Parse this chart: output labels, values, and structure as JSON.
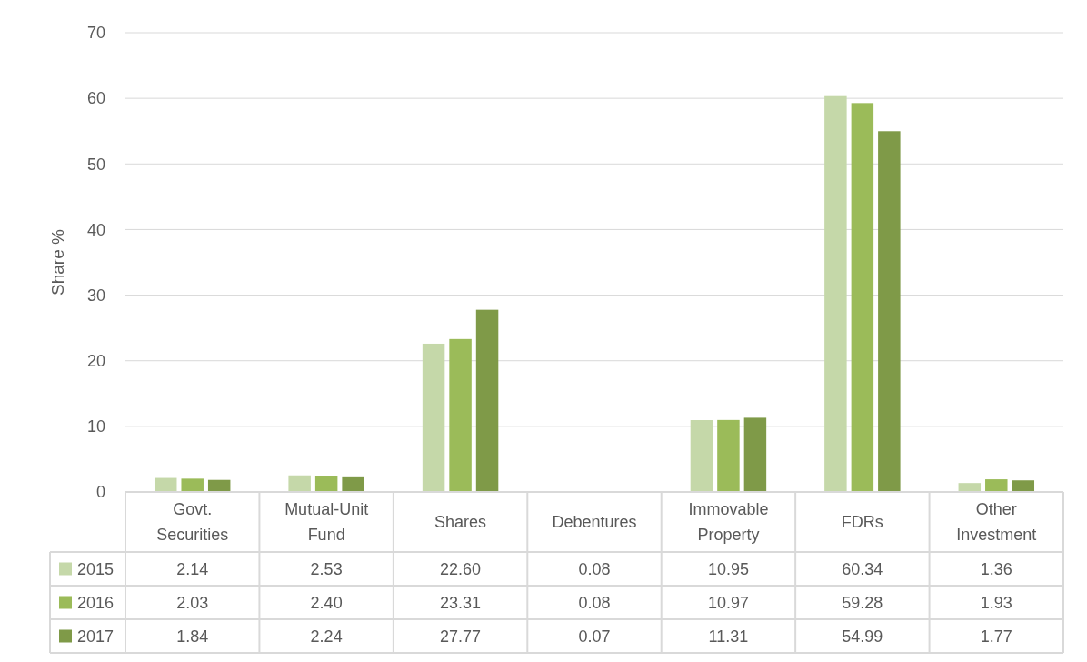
{
  "chart_data": {
    "type": "bar",
    "ylabel": "Share %",
    "categories": [
      "Govt. Securities",
      "Mutual-Unit Fund",
      "Shares",
      "Debentures",
      "Immovable Property",
      "FDRs",
      "Other Investment"
    ],
    "series": [
      {
        "name": "2015",
        "color": "#c5d8a9",
        "values": [
          2.14,
          2.53,
          22.6,
          0.08,
          10.95,
          60.34,
          1.36
        ],
        "value_labels": [
          "2.14",
          "2.53",
          "22.60",
          "0.08",
          "10.95",
          "60.34",
          "1.36"
        ]
      },
      {
        "name": "2016",
        "color": "#9bbb59",
        "values": [
          2.03,
          2.4,
          23.31,
          0.08,
          10.97,
          59.28,
          1.93
        ],
        "value_labels": [
          "2.03",
          "2.40",
          "23.31",
          "0.08",
          "10.97",
          "59.28",
          "1.93"
        ]
      },
      {
        "name": "2017",
        "color": "#7f9a48",
        "values": [
          1.84,
          2.24,
          27.77,
          0.07,
          11.31,
          54.99,
          1.77
        ],
        "value_labels": [
          "1.84",
          "2.24",
          "27.77",
          "0.07",
          "11.31",
          "54.99",
          "1.77"
        ]
      }
    ],
    "ylim": [
      0,
      70
    ],
    "yticks": [
      0,
      10,
      20,
      30,
      40,
      50,
      60,
      70
    ],
    "grid": "y",
    "legend": "bottom"
  }
}
